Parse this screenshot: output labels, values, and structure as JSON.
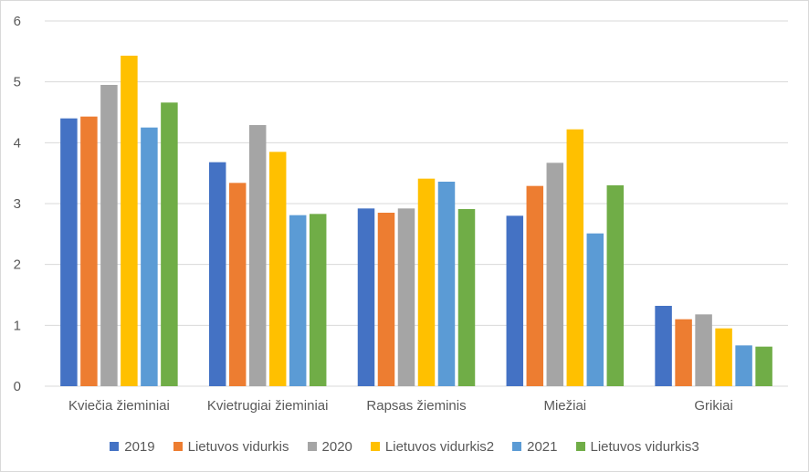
{
  "chart_data": {
    "type": "bar",
    "title": "",
    "xlabel": "",
    "ylabel": "",
    "ylim": [
      0,
      6
    ],
    "yticks": [
      0,
      1,
      2,
      3,
      4,
      5,
      6
    ],
    "grid": true,
    "legend_position": "bottom",
    "categories": [
      "Kviečia žieminiai",
      "Kvietrugiai žieminiai",
      "Rapsas žieminis",
      "Miežiai",
      "Grikiai"
    ],
    "series": [
      {
        "name": "2019",
        "color": "#4472C4",
        "values": [
          4.4,
          3.68,
          2.92,
          2.8,
          1.32
        ]
      },
      {
        "name": "Lietuvos vidurkis",
        "color": "#ED7D31",
        "values": [
          4.43,
          3.34,
          2.85,
          3.29,
          1.1
        ]
      },
      {
        "name": "2020",
        "color": "#A5A5A5",
        "values": [
          4.95,
          4.29,
          2.92,
          3.67,
          1.18
        ]
      },
      {
        "name": "Lietuvos vidurkis2",
        "color": "#FFC000",
        "values": [
          5.43,
          3.85,
          3.41,
          4.22,
          0.95
        ]
      },
      {
        "name": "2021",
        "color": "#5B9BD5",
        "values": [
          4.25,
          2.81,
          3.36,
          2.51,
          0.67
        ]
      },
      {
        "name": "Lietuvos vidurkis3",
        "color": "#70AD47",
        "values": [
          4.66,
          2.83,
          2.91,
          3.3,
          0.65
        ]
      }
    ]
  }
}
